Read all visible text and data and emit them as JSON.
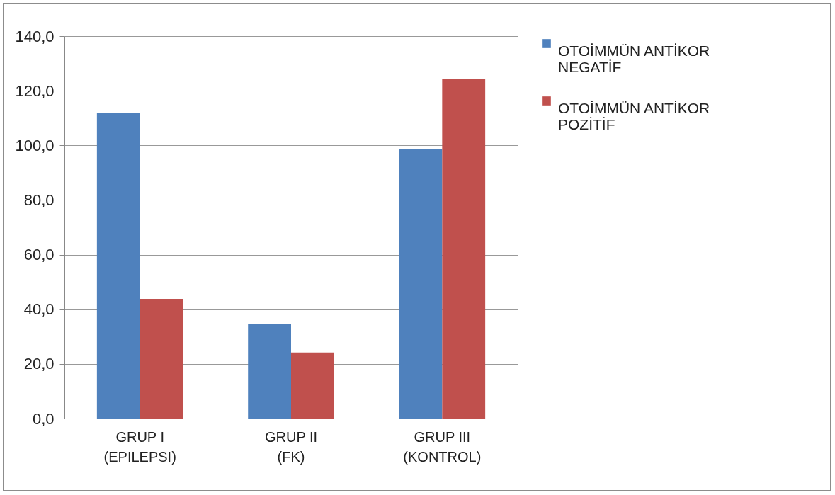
{
  "chart_data": {
    "type": "bar",
    "categories": [
      "GRUP I (EPILEPSI)",
      "GRUP II (FK)",
      "GRUP III (KONTROL)"
    ],
    "series": [
      {
        "name": "OTOİMMÜN ANTİKOR NEGATİF",
        "color": "#4f81bd",
        "values": [
          112,
          34.6,
          98.5
        ]
      },
      {
        "name": "OTOİMMÜN ANTİKOR POZİTİF",
        "color": "#c0504d",
        "values": [
          43.8,
          24.2,
          124.3
        ]
      }
    ],
    "ylim": [
      0,
      140
    ],
    "yticks": [
      {
        "value": 0,
        "label": "0,0"
      },
      {
        "value": 20,
        "label": "20,0"
      },
      {
        "value": 40,
        "label": "40,0"
      },
      {
        "value": 60,
        "label": "60,0"
      },
      {
        "value": 80,
        "label": "80,0"
      },
      {
        "value": 100,
        "label": "100,0"
      },
      {
        "value": 120,
        "label": "120,0"
      },
      {
        "value": 140,
        "label": "140,0"
      }
    ],
    "grid": "y",
    "legend": "right"
  }
}
